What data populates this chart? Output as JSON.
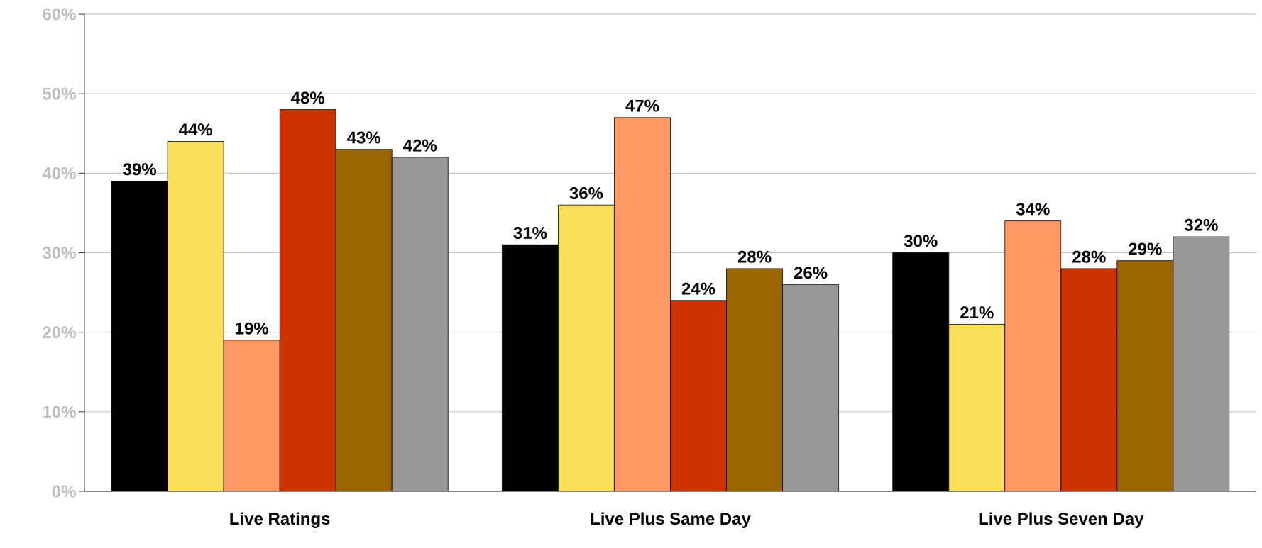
{
  "chart_data": {
    "type": "bar",
    "categories": [
      "Live Ratings",
      "Live Plus Same Day",
      "Live Plus Seven Day"
    ],
    "series": [
      {
        "color": "#000000",
        "values": [
          39,
          31,
          30
        ],
        "value_labels": [
          "39%",
          "31%",
          "30%"
        ]
      },
      {
        "color": "#f9df5a",
        "values": [
          44,
          36,
          21
        ],
        "value_labels": [
          "44%",
          "36%",
          "21%"
        ]
      },
      {
        "color": "#ff9966",
        "values": [
          19,
          47,
          34
        ],
        "value_labels": [
          "19%",
          "47%",
          "34%"
        ]
      },
      {
        "color": "#cc3300",
        "values": [
          48,
          24,
          28
        ],
        "value_labels": [
          "48%",
          "24%",
          "28%"
        ]
      },
      {
        "color": "#996600",
        "values": [
          43,
          28,
          29
        ],
        "value_labels": [
          "43%",
          "28%",
          "29%"
        ]
      },
      {
        "color": "#999999",
        "values": [
          42,
          26,
          32
        ],
        "value_labels": [
          "42%",
          "26%",
          "32%"
        ]
      }
    ],
    "ylim": [
      0,
      60
    ],
    "yticks": [
      {
        "value": 0,
        "label": "0%"
      },
      {
        "value": 10,
        "label": "10%"
      },
      {
        "value": 20,
        "label": "20%"
      },
      {
        "value": 30,
        "label": "30%"
      },
      {
        "value": 40,
        "label": "40%"
      },
      {
        "value": 50,
        "label": "50%"
      },
      {
        "value": 60,
        "label": "60%"
      }
    ],
    "grid": "y"
  }
}
